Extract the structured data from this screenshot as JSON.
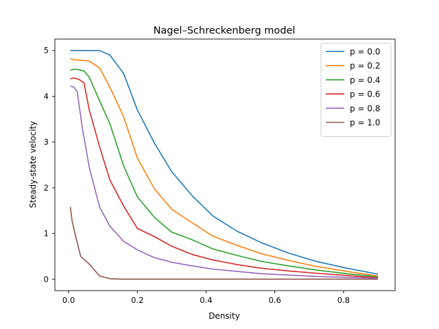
{
  "chart_data": {
    "type": "line",
    "title": "Nagel–Schreckenberg model",
    "xlabel": "Density",
    "ylabel": "Steady-state velocity",
    "xlim": [
      -0.04,
      0.95
    ],
    "ylim": [
      -0.25,
      5.25
    ],
    "xticks": [
      0.0,
      0.2,
      0.4,
      0.6,
      0.8
    ],
    "xtick_labels": [
      "0.0",
      "0.2",
      "0.4",
      "0.6",
      "0.8"
    ],
    "yticks": [
      0,
      1,
      2,
      3,
      4,
      5
    ],
    "ytick_labels": [
      "0",
      "1",
      "2",
      "3",
      "4",
      "5"
    ],
    "grid": false,
    "legend_position": "top-right",
    "series": [
      {
        "name": "p = 0.0",
        "color": "#1f77b4",
        "points": [
          [
            0.005,
            5.0
          ],
          [
            0.03,
            5.0
          ],
          [
            0.06,
            5.0
          ],
          [
            0.09,
            5.0
          ],
          [
            0.12,
            4.9
          ],
          [
            0.16,
            4.5
          ],
          [
            0.2,
            3.7
          ],
          [
            0.25,
            2.97
          ],
          [
            0.3,
            2.35
          ],
          [
            0.36,
            1.82
          ],
          [
            0.42,
            1.38
          ],
          [
            0.49,
            1.05
          ],
          [
            0.56,
            0.8
          ],
          [
            0.64,
            0.57
          ],
          [
            0.72,
            0.39
          ],
          [
            0.81,
            0.24
          ],
          [
            0.9,
            0.11
          ]
        ]
      },
      {
        "name": "p = 0.2",
        "color": "#ff7f0e",
        "points": [
          [
            0.005,
            4.82
          ],
          [
            0.015,
            4.8
          ],
          [
            0.03,
            4.79
          ],
          [
            0.06,
            4.77
          ],
          [
            0.09,
            4.62
          ],
          [
            0.12,
            4.2
          ],
          [
            0.16,
            3.55
          ],
          [
            0.2,
            2.65
          ],
          [
            0.25,
            1.97
          ],
          [
            0.3,
            1.53
          ],
          [
            0.36,
            1.23
          ],
          [
            0.42,
            0.94
          ],
          [
            0.49,
            0.74
          ],
          [
            0.56,
            0.56
          ],
          [
            0.64,
            0.41
          ],
          [
            0.72,
            0.28
          ],
          [
            0.81,
            0.17
          ],
          [
            0.9,
            0.07
          ]
        ]
      },
      {
        "name": "p = 0.4",
        "color": "#2ca02c",
        "points": [
          [
            0.005,
            4.57
          ],
          [
            0.015,
            4.59
          ],
          [
            0.03,
            4.58
          ],
          [
            0.045,
            4.55
          ],
          [
            0.06,
            4.42
          ],
          [
            0.09,
            3.9
          ],
          [
            0.12,
            3.4
          ],
          [
            0.16,
            2.48
          ],
          [
            0.2,
            1.8
          ],
          [
            0.25,
            1.35
          ],
          [
            0.3,
            1.03
          ],
          [
            0.36,
            0.86
          ],
          [
            0.42,
            0.66
          ],
          [
            0.49,
            0.52
          ],
          [
            0.56,
            0.39
          ],
          [
            0.64,
            0.29
          ],
          [
            0.72,
            0.2
          ],
          [
            0.81,
            0.12
          ],
          [
            0.9,
            0.05
          ]
        ]
      },
      {
        "name": "p = 0.6",
        "color": "#d62728",
        "points": [
          [
            0.005,
            4.38
          ],
          [
            0.015,
            4.4
          ],
          [
            0.03,
            4.37
          ],
          [
            0.045,
            4.29
          ],
          [
            0.06,
            3.7
          ],
          [
            0.09,
            2.9
          ],
          [
            0.12,
            2.17
          ],
          [
            0.16,
            1.6
          ],
          [
            0.2,
            1.11
          ],
          [
            0.25,
            0.93
          ],
          [
            0.3,
            0.72
          ],
          [
            0.36,
            0.54
          ],
          [
            0.42,
            0.42
          ],
          [
            0.49,
            0.32
          ],
          [
            0.56,
            0.24
          ],
          [
            0.64,
            0.18
          ],
          [
            0.72,
            0.13
          ],
          [
            0.81,
            0.08
          ],
          [
            0.9,
            0.03
          ]
        ]
      },
      {
        "name": "p = 0.8",
        "color": "#9467bd",
        "points": [
          [
            0.005,
            4.22
          ],
          [
            0.015,
            4.2
          ],
          [
            0.025,
            4.1
          ],
          [
            0.04,
            3.3
          ],
          [
            0.06,
            2.45
          ],
          [
            0.09,
            1.58
          ],
          [
            0.12,
            1.16
          ],
          [
            0.16,
            0.83
          ],
          [
            0.2,
            0.64
          ],
          [
            0.25,
            0.47
          ],
          [
            0.3,
            0.37
          ],
          [
            0.36,
            0.29
          ],
          [
            0.42,
            0.22
          ],
          [
            0.49,
            0.17
          ],
          [
            0.56,
            0.12
          ],
          [
            0.64,
            0.09
          ],
          [
            0.72,
            0.06
          ],
          [
            0.81,
            0.04
          ],
          [
            0.9,
            0.02
          ]
        ]
      },
      {
        "name": "p = 1.0",
        "color": "#8c564b",
        "points": [
          [
            0.005,
            1.58
          ],
          [
            0.01,
            1.28
          ],
          [
            0.02,
            0.95
          ],
          [
            0.035,
            0.5
          ],
          [
            0.06,
            0.33
          ],
          [
            0.09,
            0.07
          ],
          [
            0.12,
            0.01
          ],
          [
            0.16,
            0.0
          ],
          [
            0.2,
            0.0
          ],
          [
            0.3,
            0.0
          ],
          [
            0.42,
            0.0
          ],
          [
            0.56,
            0.0
          ],
          [
            0.72,
            0.0
          ],
          [
            0.9,
            0.0
          ]
        ]
      }
    ]
  }
}
